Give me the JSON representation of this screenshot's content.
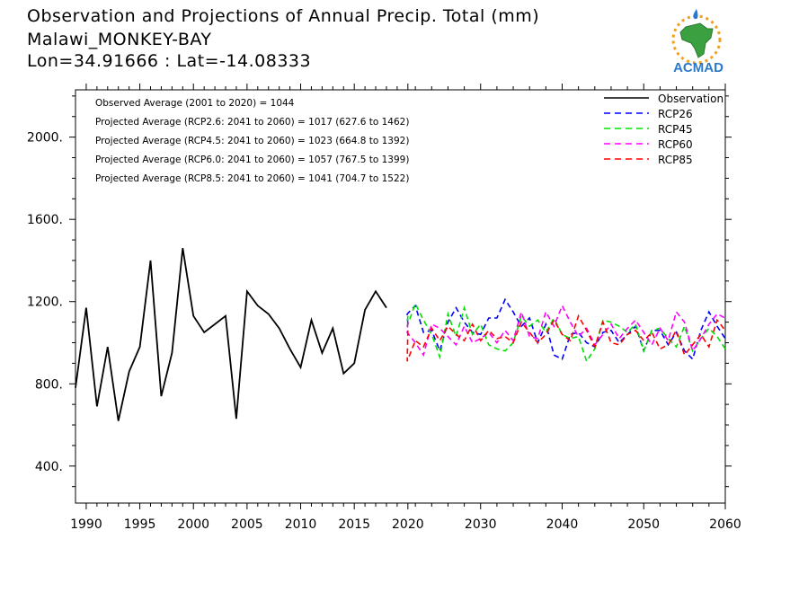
{
  "header": {
    "title": "Observation and Projections of Annual Precip. Total (mm)",
    "station": "Malawi_MONKEY-BAY",
    "coords": "Lon=34.91666 : Lat=-14.08333"
  },
  "logo": {
    "text": "ACMAD",
    "icon": "africa-map-logo"
  },
  "colors": {
    "observation": "#000000",
    "rcp26": "#0000ff",
    "rcp45": "#00e000",
    "rcp60": "#ff00ff",
    "rcp85": "#ff0000"
  },
  "chart_data": {
    "type": "line",
    "ylim": [
      220,
      2230
    ],
    "y_ticks": [
      400,
      800,
      1200,
      1600,
      2000
    ],
    "y_tick_labels": [
      "400.",
      "800.",
      "1200.",
      "1600.",
      "2000."
    ],
    "x_ticks_left": [
      1990,
      1995,
      2000,
      2005,
      2010,
      2015,
      2020
    ],
    "x_ticks_right": [
      2030,
      2040,
      2050,
      2060
    ],
    "annotations": [
      "Observed Average (2001 to 2020) = 1044",
      "Projected Average (RCP2.6: 2041 to 2060) = 1017 (627.6 to 1462)",
      "Projected Average (RCP4.5: 2041 to 2060) = 1023 (664.8 to 1392)",
      "Projected Average (RCP6.0: 2041 to 2060) = 1057 (767.5 to 1399)",
      "Projected Average (RCP8.5: 2041 to 2060) = 1041 (704.7 to 1522)"
    ],
    "series": [
      {
        "name": "Observation",
        "key": "observation",
        "x": [
          1989,
          1990,
          1991,
          1992,
          1993,
          1994,
          1995,
          1996,
          1997,
          1998,
          1999,
          2000,
          2001,
          2002,
          2003,
          2004,
          2005,
          2006,
          2007,
          2008,
          2009,
          2010,
          2011,
          2012,
          2013,
          2014,
          2015,
          2016,
          2017,
          2018,
          2019
        ],
        "y": [
          780,
          1170,
          690,
          980,
          620,
          860,
          980,
          1400,
          740,
          950,
          1460,
          1130,
          1050,
          1090,
          1130,
          630,
          1250,
          1180,
          1140,
          1070,
          970,
          880,
          1110,
          950,
          1070,
          850,
          900,
          1160,
          1250,
          1170,
          null
        ]
      },
      {
        "name": "RCP26",
        "key": "rcp26",
        "x": [
          2020,
          2021,
          2022,
          2023,
          2024,
          2025,
          2026,
          2027,
          2028,
          2029,
          2030,
          2031,
          2032,
          2033,
          2034,
          2035,
          2036,
          2037,
          2038,
          2039,
          2040,
          2041,
          2042,
          2043,
          2044,
          2045,
          2046,
          2047,
          2048,
          2049,
          2050,
          2051,
          2052,
          2053,
          2054,
          2055,
          2056,
          2057,
          2058,
          2059,
          2060
        ],
        "y": [
          1090,
          1140,
          1180,
          1050,
          1060,
          960,
          1100,
          1170,
          1100,
          1050,
          1040,
          1120,
          1120,
          1210,
          1150,
          1080,
          1120,
          1000,
          1090,
          940,
          920,
          1040,
          1050,
          1000,
          980,
          1050,
          1060,
          1000,
          1040,
          1080,
          960,
          1060,
          1060,
          990,
          1050,
          960,
          920,
          1060,
          1150,
          1080,
          1020
        ]
      },
      {
        "name": "RCP45",
        "key": "rcp45",
        "x": [
          2020,
          2021,
          2022,
          2023,
          2024,
          2025,
          2026,
          2027,
          2028,
          2029,
          2030,
          2031,
          2032,
          2033,
          2034,
          2035,
          2036,
          2037,
          2038,
          2039,
          2040,
          2041,
          2042,
          2043,
          2044,
          2045,
          2046,
          2047,
          2048,
          2049,
          2050,
          2051,
          2052,
          2053,
          2054,
          2055,
          2056,
          2057,
          2058,
          2059,
          2060
        ],
        "y": [
          1130,
          1080,
          1190,
          1110,
          1040,
          930,
          1140,
          1030,
          1170,
          1040,
          1090,
          990,
          970,
          960,
          1000,
          1130,
          1080,
          1110,
          1050,
          1120,
          1040,
          1020,
          1030,
          910,
          970,
          1110,
          1100,
          1080,
          1050,
          1090,
          960,
          1060,
          1070,
          1020,
          980,
          1080,
          960,
          1020,
          1070,
          1030,
          970
        ]
      },
      {
        "name": "RCP60",
        "key": "rcp60",
        "x": [
          2020,
          2021,
          2022,
          2023,
          2024,
          2025,
          2026,
          2027,
          2028,
          2029,
          2030,
          2031,
          2032,
          2033,
          2034,
          2035,
          2036,
          2037,
          2038,
          2039,
          2040,
          2041,
          2042,
          2043,
          2044,
          2045,
          2046,
          2047,
          2048,
          2049,
          2050,
          2051,
          2052,
          2053,
          2054,
          2055,
          2056,
          2057,
          2058,
          2059,
          2060
        ],
        "y": [
          1100,
          1050,
          1000,
          940,
          1090,
          1070,
          1030,
          990,
          1080,
          1000,
          1020,
          1050,
          1000,
          1060,
          1010,
          1150,
          1030,
          1020,
          1150,
          1080,
          1180,
          1100,
          1030,
          1070,
          990,
          1040,
          1090,
          1020,
          1070,
          1110,
          1050,
          990,
          1070,
          1010,
          1150,
          1100,
          960,
          1020,
          1090,
          1140,
          1120
        ]
      },
      {
        "name": "RCP85",
        "key": "rcp85",
        "x": [
          2020,
          2021,
          2022,
          2023,
          2024,
          2025,
          2026,
          2027,
          2028,
          2029,
          2030,
          2031,
          2032,
          2033,
          2034,
          2035,
          2036,
          2037,
          2038,
          2039,
          2040,
          2041,
          2042,
          2043,
          2044,
          2045,
          2046,
          2047,
          2048,
          2049,
          2050,
          2051,
          2052,
          2053,
          2054,
          2055,
          2056,
          2057,
          2058,
          2059,
          2060
        ],
        "y": [
          1060,
          910,
          1010,
          980,
          1070,
          1010,
          1080,
          1040,
          1010,
          1090,
          1010,
          1060,
          1020,
          1030,
          1000,
          1100,
          1050,
          1000,
          1040,
          1110,
          1040,
          1010,
          1130,
          1060,
          980,
          1100,
          1000,
          990,
          1040,
          1060,
          1010,
          1050,
          970,
          990,
          1060,
          940,
          990,
          1040,
          980,
          1110,
          1060
        ]
      }
    ]
  }
}
